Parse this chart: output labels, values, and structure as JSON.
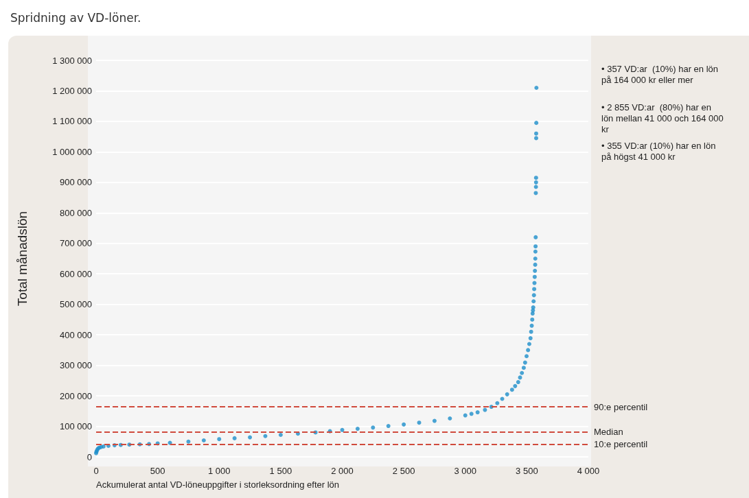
{
  "chart_data": {
    "type": "scatter",
    "title": "Spridning av VD-löner.",
    "xlabel": "Ackumulerat antal VD-löneuppgifter i storleksordning efter lön",
    "ylabel": "Total månadslön",
    "annotations": [
      "• 357 VD:ar  (10%) har en lön på 164 000 kr eller mer",
      "• 2 855 VD:ar  (80%) har en lön mellan 41 000 och 164 000 kr",
      "• 355 VD:ar (10%) har en lön på högst 41 000 kr"
    ],
    "x": [
      0,
      3,
      8,
      15,
      25,
      40,
      60,
      100,
      150,
      200,
      270,
      355,
      430,
      500,
      600,
      750,
      875,
      1000,
      1125,
      1250,
      1375,
      1500,
      1640,
      1783,
      1900,
      2000,
      2125,
      2250,
      2375,
      2500,
      2625,
      2750,
      2875,
      3000,
      3050,
      3100,
      3160,
      3212,
      3260,
      3300,
      3340,
      3380,
      3405,
      3430,
      3445,
      3460,
      3475,
      3486,
      3498,
      3510,
      3520,
      3530,
      3535,
      3540,
      3544,
      3547,
      3550,
      3552,
      3555,
      3558,
      3560,
      3562,
      3564,
      3566,
      3568,
      3569,
      3570,
      3571,
      3572,
      3573,
      3574,
      3575,
      3575,
      3576,
      3576,
      3577,
      3578
    ],
    "values": [
      12000,
      17000,
      22000,
      27000,
      30000,
      32000,
      34000,
      36000,
      38000,
      39000,
      40000,
      41000,
      42000,
      44000,
      46000,
      50000,
      54000,
      58000,
      61000,
      64000,
      68000,
      72000,
      76000,
      80000,
      84000,
      88000,
      92000,
      96000,
      101000,
      106000,
      112000,
      118000,
      126000,
      136000,
      141000,
      146000,
      154000,
      164000,
      176000,
      190000,
      205000,
      220000,
      232000,
      245000,
      260000,
      275000,
      292000,
      309000,
      330000,
      350000,
      370000,
      389000,
      410000,
      430000,
      450000,
      470000,
      480000,
      490000,
      510000,
      530000,
      550000,
      570000,
      590000,
      610000,
      630000,
      650000,
      673000,
      690000,
      720000,
      865000,
      885000,
      900000,
      915000,
      1045000,
      1060000,
      1095000,
      1210000
    ],
    "color": "#1e8fca",
    "marker": "circle",
    "grid": "y",
    "xlim": [
      0,
      4000
    ],
    "xticks": [
      0,
      500,
      {
        "value": 1000,
        "label": "1 000"
      },
      {
        "value": 1500,
        "label": "1 500"
      },
      {
        "value": 2000,
        "label": "2 000"
      },
      {
        "value": 2500,
        "label": "2 500"
      },
      {
        "value": 3000,
        "label": "3 000"
      },
      {
        "value": 3500,
        "label": "3 500"
      },
      {
        "value": 4000,
        "label": "4 000"
      }
    ],
    "ylim": [
      0,
      1300000
    ],
    "yticks": [
      0,
      {
        "value": 100000,
        "label": "100 000"
      },
      {
        "value": 200000,
        "label": "200 000"
      },
      {
        "value": 300000,
        "label": "300 000"
      },
      {
        "value": 400000,
        "label": "400 000"
      },
      {
        "value": 500000,
        "label": "500 000"
      },
      {
        "value": 600000,
        "label": "600 000"
      },
      {
        "value": 700000,
        "label": "700 000"
      },
      {
        "value": 800000,
        "label": "800 000"
      },
      {
        "value": 900000,
        "label": "900 000"
      },
      {
        "value": 1000000,
        "label": "1 000 000"
      },
      {
        "value": 1100000,
        "label": "1 100 000"
      },
      {
        "value": 1200000,
        "label": "1 200 000"
      },
      {
        "value": 1300000,
        "label": "1 300 000"
      }
    ],
    "ref_lines": [
      {
        "axis": "y",
        "value": 164000,
        "label": "90:e percentil",
        "color": "#d04a3c",
        "line_style": "dashed"
      },
      {
        "axis": "y",
        "value": 82000,
        "label": "Median",
        "color": "#d04a3c",
        "line_style": "dashed"
      },
      {
        "axis": "y",
        "value": 41000,
        "label": "10:e percentil",
        "color": "#d04a3c",
        "line_style": "dashed"
      }
    ]
  }
}
